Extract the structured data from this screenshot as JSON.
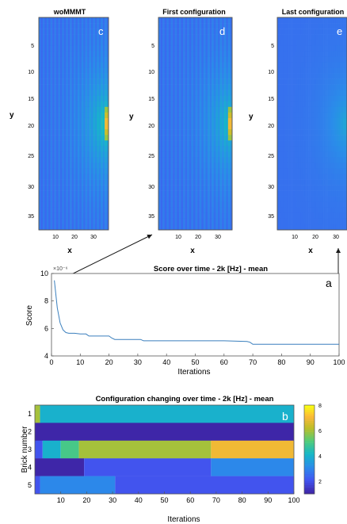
{
  "colors": {
    "field_base": "#3848d8",
    "field_hot": "#f0e020",
    "line": "#3a7fbd",
    "arrow": "#1a1a1a"
  },
  "fields": [
    {
      "title": "woMMMT",
      "letter": "c",
      "ylabel": "y",
      "xlabel": "x",
      "yticks": [
        "5",
        "10",
        "15",
        "20",
        "25",
        "30",
        "35"
      ],
      "xticks": [
        "10",
        "20",
        "30"
      ]
    },
    {
      "title": "First configuration",
      "letter": "d",
      "ylabel": "y",
      "xlabel": "x",
      "yticks": [
        "5",
        "10",
        "15",
        "20",
        "25",
        "30",
        "35"
      ],
      "xticks": [
        "10",
        "20",
        "30"
      ]
    },
    {
      "title": "Last configuration",
      "letter": "e",
      "ylabel": "y",
      "xlabel": "x",
      "yticks": [
        "5",
        "10",
        "15",
        "20",
        "25",
        "30",
        "35"
      ],
      "xticks": [
        "10",
        "20",
        "30"
      ]
    }
  ],
  "chart_data": [
    {
      "type": "line",
      "title": "Score over time - 2k [Hz] - mean",
      "letter": "a",
      "xlabel": "Iterations",
      "ylabel": "Score",
      "exponent_label": "×10⁻⁶",
      "xlim": [
        0,
        100
      ],
      "ylim": [
        4,
        10
      ],
      "xticks": [
        0,
        10,
        20,
        30,
        40,
        50,
        60,
        70,
        80,
        90,
        100
      ],
      "yticks": [
        4,
        6,
        8,
        10
      ],
      "x": [
        1,
        2,
        3,
        4,
        5,
        6,
        8,
        10,
        12,
        13,
        20,
        21,
        22,
        31,
        32,
        60,
        68,
        69,
        70,
        100
      ],
      "y": [
        9.5,
        7.5,
        6.4,
        5.9,
        5.7,
        5.65,
        5.65,
        5.6,
        5.6,
        5.45,
        5.45,
        5.3,
        5.2,
        5.2,
        5.1,
        5.1,
        5.05,
        5.0,
        4.85,
        4.85
      ]
    },
    {
      "type": "heatmap",
      "title": "Configuration changing over time - 2k [Hz] - mean",
      "letter": "b",
      "xlabel": "Iterations",
      "ylabel": "Brick number",
      "xlim": [
        0,
        100
      ],
      "xticks": [
        10,
        20,
        30,
        40,
        50,
        60,
        70,
        80,
        90,
        100
      ],
      "rows": [
        "1",
        "2",
        "3",
        "4",
        "5"
      ],
      "colorbar_ticks": [
        2,
        4,
        6,
        8
      ],
      "crange": [
        1,
        8
      ],
      "segments": [
        [
          [
            0,
            2,
            6
          ],
          [
            2,
            100,
            4
          ]
        ],
        [
          [
            0,
            100,
            1
          ]
        ],
        [
          [
            0,
            3,
            2
          ],
          [
            3,
            10,
            4
          ],
          [
            10,
            17,
            5
          ],
          [
            17,
            68,
            6
          ],
          [
            68,
            100,
            7
          ]
        ],
        [
          [
            0,
            19,
            1
          ],
          [
            19,
            68,
            2
          ],
          [
            68,
            100,
            3
          ]
        ],
        [
          [
            0,
            2,
            2
          ],
          [
            2,
            31,
            3
          ],
          [
            31,
            100,
            2
          ]
        ]
      ]
    }
  ]
}
